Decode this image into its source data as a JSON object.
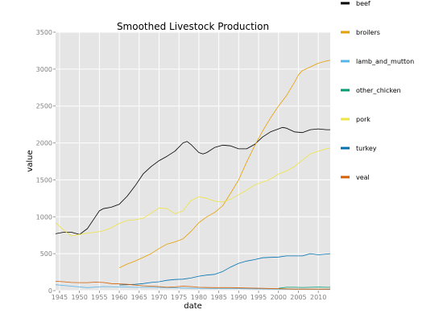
{
  "chart_data": {
    "type": "line",
    "title": "Smoothed Livestock Production",
    "xlabel": "date",
    "ylabel": "value",
    "xlim": [
      1944,
      2013
    ],
    "ylim": [
      0,
      3500
    ],
    "xticks": [
      "1945",
      "1950",
      "1955",
      "1960",
      "1965",
      "1970",
      "1975",
      "1980",
      "1985",
      "1990",
      "1995",
      "2000",
      "2005",
      "2010"
    ],
    "yticks": [
      "0",
      "500",
      "1000",
      "1500",
      "2000",
      "2500",
      "3000",
      "3500"
    ],
    "grid": true,
    "background": "#e5e5e5",
    "legend_position": "right",
    "series": [
      {
        "name": "beef",
        "color": "#000000",
        "x": [
          1944,
          1946,
          1948,
          1950,
          1952,
          1954,
          1955,
          1956,
          1958,
          1960,
          1962,
          1964,
          1966,
          1968,
          1970,
          1972,
          1974,
          1976,
          1977,
          1978,
          1980,
          1981,
          1982,
          1984,
          1986,
          1988,
          1990,
          1992,
          1994,
          1996,
          1998,
          2000,
          2001,
          2002,
          2004,
          2006,
          2008,
          2010,
          2012,
          2013
        ],
        "y": [
          770,
          790,
          790,
          760,
          840,
          1000,
          1080,
          1110,
          1130,
          1170,
          1280,
          1420,
          1580,
          1680,
          1760,
          1820,
          1890,
          2000,
          2020,
          1980,
          1870,
          1850,
          1870,
          1940,
          1970,
          1960,
          1920,
          1920,
          1980,
          2080,
          2150,
          2190,
          2210,
          2200,
          2150,
          2140,
          2180,
          2190,
          2180,
          2180
        ]
      },
      {
        "name": "broilers",
        "color": "#e69f00",
        "x": [
          1960,
          1962,
          1964,
          1966,
          1968,
          1970,
          1972,
          1974,
          1976,
          1978,
          1980,
          1982,
          1984,
          1986,
          1988,
          1990,
          1992,
          1994,
          1996,
          1998,
          2000,
          2002,
          2004,
          2005,
          2006,
          2008,
          2010,
          2012,
          2013
        ],
        "y": [
          310,
          360,
          400,
          450,
          500,
          570,
          630,
          660,
          700,
          800,
          920,
          1000,
          1060,
          1150,
          1320,
          1500,
          1740,
          1960,
          2160,
          2340,
          2500,
          2640,
          2820,
          2920,
          2980,
          3030,
          3080,
          3110,
          3120
        ]
      },
      {
        "name": "lamb_and_mutton",
        "color": "#56b4e9",
        "x": [
          1944,
          1948,
          1952,
          1956,
          1960,
          1964,
          1968,
          1972,
          1976,
          1980,
          1984,
          1988,
          1992,
          1996,
          2000,
          2004,
          2008,
          2013
        ],
        "y": [
          80,
          60,
          40,
          55,
          50,
          45,
          45,
          40,
          35,
          30,
          28,
          28,
          25,
          22,
          20,
          18,
          18,
          15
        ]
      },
      {
        "name": "other_chicken",
        "color": "#009e73",
        "x": [
          2000,
          2002,
          2004,
          2006,
          2008,
          2010,
          2012,
          2013
        ],
        "y": [
          30,
          45,
          45,
          42,
          45,
          48,
          45,
          45
        ]
      },
      {
        "name": "pork",
        "color": "#f0e442",
        "x": [
          1944,
          1946,
          1948,
          1950,
          1952,
          1954,
          1956,
          1958,
          1960,
          1962,
          1964,
          1966,
          1968,
          1970,
          1972,
          1974,
          1976,
          1978,
          1980,
          1982,
          1984,
          1986,
          1988,
          1990,
          1992,
          1994,
          1996,
          1998,
          2000,
          2002,
          2004,
          2006,
          2008,
          2010,
          2012,
          2013
        ],
        "y": [
          920,
          820,
          740,
          760,
          780,
          790,
          810,
          850,
          910,
          950,
          960,
          980,
          1050,
          1120,
          1110,
          1040,
          1080,
          1220,
          1270,
          1250,
          1210,
          1200,
          1240,
          1300,
          1360,
          1430,
          1470,
          1510,
          1580,
          1620,
          1680,
          1770,
          1850,
          1890,
          1920,
          1930
        ]
      },
      {
        "name": "turkey",
        "color": "#0072b2",
        "x": [
          1960,
          1962,
          1964,
          1966,
          1968,
          1970,
          1972,
          1974,
          1976,
          1978,
          1980,
          1982,
          1984,
          1986,
          1988,
          1990,
          1992,
          1994,
          1996,
          1998,
          2000,
          2002,
          2004,
          2006,
          2008,
          2010,
          2012,
          2013
        ],
        "y": [
          75,
          80,
          85,
          95,
          110,
          120,
          140,
          150,
          155,
          170,
          195,
          210,
          220,
          260,
          320,
          370,
          400,
          420,
          445,
          450,
          455,
          470,
          470,
          470,
          500,
          485,
          495,
          500
        ]
      },
      {
        "name": "veal",
        "color": "#d55e00",
        "x": [
          1944,
          1946,
          1948,
          1950,
          1952,
          1954,
          1956,
          1958,
          1960,
          1962,
          1964,
          1966,
          1968,
          1970,
          1972,
          1974,
          1976,
          1978,
          1980,
          1984,
          1988,
          1992,
          1996,
          2000,
          2004,
          2008,
          2013
        ],
        "y": [
          125,
          120,
          110,
          108,
          108,
          115,
          110,
          95,
          90,
          85,
          75,
          65,
          60,
          55,
          45,
          50,
          60,
          55,
          45,
          40,
          40,
          35,
          30,
          25,
          20,
          20,
          20
        ]
      }
    ]
  }
}
